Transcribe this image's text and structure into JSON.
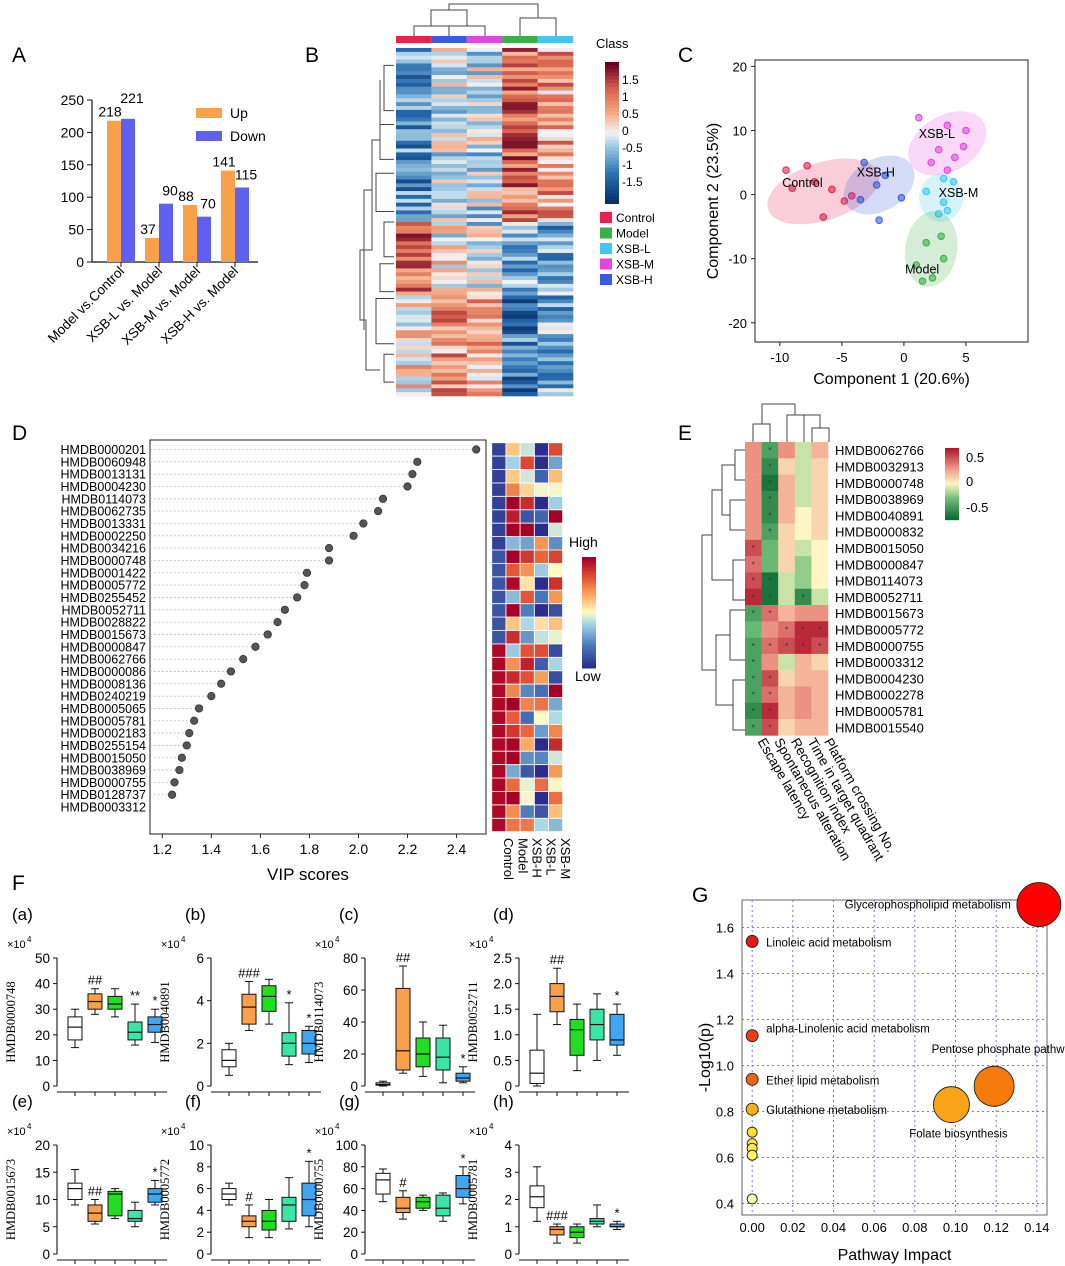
{
  "panel_labels": {
    "A": "A",
    "B": "B",
    "C": "C",
    "D": "D",
    "E": "E",
    "F": "F",
    "G": "G"
  },
  "colors": {
    "up": "#f9a04a",
    "down": "#6060f0",
    "control": "#e8224e",
    "model": "#3aae49",
    "xsb_l": "#41c7ef",
    "xsb_m": "#df47df",
    "xsb_h": "#3a5ae0"
  },
  "chart_data": [
    {
      "id": "A",
      "type": "bar",
      "categories": [
        "Model vs.Control",
        "XSB-L vs. Model",
        "XSB-M vs. Model",
        "XSB-H vs. Model"
      ],
      "series": [
        {
          "name": "Up",
          "values": [
            218,
            37,
            88,
            141
          ]
        },
        {
          "name": "Down",
          "values": [
            221,
            90,
            70,
            115
          ]
        }
      ],
      "ylim": [
        0,
        250
      ],
      "yticks": [
        0,
        50,
        100,
        150,
        200,
        250
      ],
      "legend": [
        "Up",
        "Down"
      ]
    },
    {
      "id": "B",
      "type": "heatmap",
      "legend_title": "Class",
      "scale_ticks": [
        "1.5",
        "1",
        "0.5",
        "0",
        "-0.5",
        "-1",
        "-1.5"
      ],
      "class_legend": [
        "Control",
        "Model",
        "XSB-L",
        "XSB-M",
        "XSB-H"
      ],
      "column_order": [
        "Control",
        "XSB-H",
        "XSB-M",
        "Model",
        "XSB-L"
      ]
    },
    {
      "id": "C",
      "type": "scatter",
      "xlabel": "Component 1 (20.6%)",
      "ylabel": "Component 2 (23.5%)",
      "xlim": [
        -12,
        10
      ],
      "ylim": [
        -23,
        21
      ],
      "xticks": [
        -10,
        -5,
        0,
        5
      ],
      "yticks": [
        -20,
        -10,
        0,
        10,
        20
      ],
      "groups": [
        {
          "name": "Control",
          "points": [
            [
              -9.5,
              3.8
            ],
            [
              -7.8,
              4.5
            ],
            [
              -7.2,
              2
            ],
            [
              -5.8,
              0.8
            ],
            [
              -4.2,
              -0.2
            ],
            [
              -4.8,
              -1
            ],
            [
              -6.5,
              -3.5
            ],
            [
              -9,
              1
            ]
          ]
        },
        {
          "name": "XSB-H",
          "points": [
            [
              -3.2,
              5
            ],
            [
              -1.5,
              3
            ],
            [
              -2.2,
              1.5
            ],
            [
              -3.5,
              -0.8
            ],
            [
              -0.2,
              -0.5
            ],
            [
              -2,
              -4
            ]
          ]
        },
        {
          "name": "XSB-L",
          "points": [
            [
              1.2,
              12
            ],
            [
              3.5,
              10.8
            ],
            [
              5,
              10
            ],
            [
              2.8,
              7
            ],
            [
              4.8,
              7.5
            ],
            [
              2.2,
              5
            ],
            [
              3.5,
              3.8
            ],
            [
              4.1,
              5.8
            ]
          ]
        },
        {
          "name": "XSB-M",
          "points": [
            [
              3.2,
              2.5
            ],
            [
              4,
              2
            ],
            [
              1.8,
              0.5
            ],
            [
              3.2,
              -1.2
            ],
            [
              3.5,
              -2.5
            ],
            [
              2.8,
              -3
            ]
          ]
        },
        {
          "name": "Model",
          "points": [
            [
              3,
              -6.5
            ],
            [
              1.8,
              -7.5
            ],
            [
              3.2,
              -10
            ],
            [
              1,
              -11
            ],
            [
              1.5,
              -13.5
            ],
            [
              2.3,
              -13
            ]
          ]
        }
      ]
    },
    {
      "id": "D",
      "type": "scatter",
      "xlabel": "VIP scores",
      "xlim": [
        1.15,
        2.52
      ],
      "xticks": [
        1.2,
        1.4,
        1.6,
        1.8,
        2.0,
        2.2,
        2.4
      ],
      "metabolites": [
        "HMDB0000201",
        "HMDB0060948",
        "HMDB0013131",
        "HMDB0004230",
        "HMDB0114073",
        "HMDB0062735",
        "HMDB0013331",
        "HMDB0002250",
        "HMDB0034216",
        "HMDB0000748",
        "HMDB0001422",
        "HMDB0005772",
        "HMDB0255452",
        "HMDB0052711",
        "HMDB0028822",
        "HMDB0015673",
        "HMDB0000847",
        "HMDB0062766",
        "HMDB0000086",
        "HMDB0008136",
        "HMDB0240219",
        "HMDB0005065",
        "HMDB0005781",
        "HMDB0002183",
        "HMDB0255154",
        "HMDB0015050",
        "HMDB0038969",
        "HMDB0000755",
        "HMDB0128737",
        "HMDB0003312"
      ],
      "vip": [
        2.48,
        2.24,
        2.22,
        2.2,
        2.1,
        2.08,
        2.02,
        1.98,
        1.88,
        1.88,
        1.79,
        1.78,
        1.75,
        1.7,
        1.67,
        1.63,
        1.58,
        1.53,
        1.48,
        1.44,
        1.4,
        1.35,
        1.33,
        1.31,
        1.3,
        1.28,
        1.27,
        1.25,
        1.24,
        1.2
      ],
      "heat_columns": [
        "Control",
        "Model",
        "XSB-H",
        "XSB-L",
        "XSB-M"
      ],
      "scale_high": "High",
      "scale_low": "Low"
    },
    {
      "id": "E",
      "type": "heatmap",
      "rows": [
        "HMDB0062766",
        "HMDB0032913",
        "HMDB0000748",
        "HMDB0038969",
        "HMDB0040891",
        "HMDB0000832",
        "HMDB0015050",
        "HMDB0000847",
        "HMDB0114073",
        "HMDB0052711",
        "HMDB0015673",
        "HMDB0005772",
        "HMDB0000755",
        "HMDB0003312",
        "HMDB0004230",
        "HMDB0002278",
        "HMDB0005781",
        "HMDB0015540"
      ],
      "columns": [
        "Escape latency",
        "Spontaneous alteration",
        "Recognition index",
        "Time in target quadrant",
        "Platform crossing No."
      ],
      "scale_ticks": [
        "0.5",
        "0",
        "-0.5"
      ],
      "values": [
        [
          0.3,
          -0.4,
          0.3,
          -0.1,
          0.2
        ],
        [
          0.3,
          -0.5,
          0.1,
          -0.1,
          0.1
        ],
        [
          0.3,
          -0.6,
          0.2,
          -0.1,
          0.1
        ],
        [
          0.3,
          -0.5,
          0.2,
          -0.1,
          0.1
        ],
        [
          0.3,
          -0.5,
          0.2,
          0.0,
          0.1
        ],
        [
          0.3,
          -0.4,
          0.1,
          0.0,
          0.1
        ],
        [
          0.5,
          -0.3,
          0.1,
          -0.1,
          0.0
        ],
        [
          0.4,
          -0.3,
          0.1,
          -0.2,
          0.0
        ],
        [
          0.5,
          -0.6,
          -0.1,
          -0.2,
          0.0
        ],
        [
          0.6,
          -0.6,
          -0.1,
          -0.5,
          -0.1
        ],
        [
          -0.4,
          0.4,
          0.2,
          0.3,
          0.3
        ],
        [
          -0.3,
          0.3,
          0.4,
          0.6,
          0.6
        ],
        [
          -0.4,
          0.4,
          0.5,
          0.6,
          0.5
        ],
        [
          -0.4,
          0.3,
          -0.1,
          0.2,
          0.1
        ],
        [
          -0.4,
          0.5,
          0.1,
          0.2,
          0.2
        ],
        [
          -0.4,
          0.4,
          0.2,
          0.3,
          0.2
        ],
        [
          -0.5,
          0.6,
          0.2,
          0.3,
          0.2
        ],
        [
          -0.4,
          0.5,
          0.1,
          0.2,
          0.2
        ]
      ]
    },
    {
      "id": "F",
      "type": "box",
      "groups": [
        "Control",
        "Model",
        "XSB-L",
        "XSB-M",
        "XSB-H"
      ],
      "group_colors": [
        "#ffffff",
        "#f9a04a",
        "#22dd22",
        "#3be5a6",
        "#3fa6f2"
      ],
      "subplots": [
        {
          "tag": "(a)",
          "ylabel": "HMDB0000748",
          "scale": "×10",
          "scale_exp": "4",
          "ylim": [
            0,
            50
          ],
          "yticks": [
            "0",
            "10",
            "20",
            "30",
            "40",
            "50"
          ],
          "boxes": [
            [
              15,
              18,
              23,
              27,
              30
            ],
            [
              28,
              30,
              33,
              36,
              38
            ],
            [
              27,
              30,
              32,
              35,
              38
            ],
            [
              16,
              18,
              21,
              25,
              32
            ],
            [
              17,
              21,
              24,
              27,
              30
            ]
          ],
          "marks": [
            "",
            "##",
            "",
            "**",
            "*"
          ]
        },
        {
          "tag": "(b)",
          "ylabel": "HMDB0040891",
          "scale": "×10",
          "scale_exp": "4",
          "ylim": [
            0,
            6
          ],
          "yticks": [
            "0",
            "2",
            "4",
            "6"
          ],
          "boxes": [
            [
              0.5,
              0.9,
              1.2,
              1.7,
              2.0
            ],
            [
              2.6,
              2.9,
              3.7,
              4.3,
              4.9
            ],
            [
              2.9,
              3.5,
              4.2,
              4.7,
              5.0
            ],
            [
              1.0,
              1.4,
              2.0,
              2.5,
              3.9
            ],
            [
              1.1,
              1.5,
              2.0,
              2.6,
              2.8
            ]
          ],
          "marks": [
            "",
            "###",
            "",
            "*",
            "*"
          ]
        },
        {
          "tag": "(c)",
          "ylabel": "HMDB0114073",
          "scale": "×10",
          "scale_exp": "4",
          "ylim": [
            0,
            80
          ],
          "yticks": [
            "0",
            "20",
            "40",
            "60",
            "80"
          ],
          "boxes": [
            [
              0,
              0.5,
              1,
              2,
              3
            ],
            [
              8,
              10,
              22,
              61,
              75
            ],
            [
              6,
              12,
              20,
              30,
              40
            ],
            [
              2,
              10,
              18,
              30,
              38
            ],
            [
              2,
              3,
              5,
              8,
              12
            ]
          ],
          "marks": [
            "",
            "##",
            "",
            "",
            "*"
          ]
        },
        {
          "tag": "(d)",
          "ylabel": "HMDB0052711",
          "scale": "×10",
          "scale_exp": "4",
          "ylim": [
            0,
            2.5
          ],
          "yticks": [
            "0",
            "0.5",
            "1.0",
            "1.5",
            "2.0",
            "2.5"
          ],
          "boxes": [
            [
              0,
              0.05,
              0.25,
              0.7,
              1.4
            ],
            [
              1.2,
              1.45,
              1.75,
              2.0,
              2.3
            ],
            [
              0.3,
              0.6,
              1.1,
              1.3,
              1.6
            ],
            [
              0.5,
              0.9,
              1.2,
              1.5,
              1.8
            ],
            [
              0.6,
              0.8,
              0.9,
              1.4,
              1.6
            ]
          ],
          "marks": [
            "",
            "##",
            "",
            "",
            "*"
          ]
        },
        {
          "tag": "(e)",
          "ylabel": "HMDB0015673",
          "scale": "×10",
          "scale_exp": "4",
          "ylim": [
            0,
            20
          ],
          "yticks": [
            "0",
            "5",
            "10",
            "15",
            "20"
          ],
          "boxes": [
            [
              9,
              10,
              12,
              13,
              15.5
            ],
            [
              5.5,
              6,
              7.5,
              9,
              10
            ],
            [
              6.5,
              7,
              11,
              11.5,
              12
            ],
            [
              5,
              6,
              6.5,
              8,
              9.5
            ],
            [
              9,
              9.5,
              11,
              12,
              13.5
            ]
          ],
          "marks": [
            "",
            "##",
            "",
            "",
            "*"
          ]
        },
        {
          "tag": "(f)",
          "ylabel": "HMDB0005772",
          "scale": "×10",
          "scale_exp": "4",
          "ylim": [
            0,
            10
          ],
          "yticks": [
            "0",
            "2",
            "4",
            "6",
            "8",
            "10"
          ],
          "boxes": [
            [
              4.5,
              5,
              5.5,
              6,
              6.5
            ],
            [
              1.5,
              2.5,
              3,
              3.5,
              4.5
            ],
            [
              1.5,
              2.2,
              3,
              4,
              5
            ],
            [
              2.3,
              3,
              4.5,
              5.2,
              7
            ],
            [
              2.5,
              3.5,
              5,
              6.5,
              8.5
            ]
          ],
          "marks": [
            "",
            "#",
            "",
            "",
            "*"
          ]
        },
        {
          "tag": "(g)",
          "ylabel": "HMDB0000755",
          "scale": "×10",
          "scale_exp": "4",
          "ylim": [
            0,
            100
          ],
          "yticks": [
            "0",
            "20",
            "40",
            "60",
            "80",
            "100"
          ],
          "boxes": [
            [
              48,
              55,
              68,
              74,
              78
            ],
            [
              32,
              38,
              42,
              52,
              58
            ],
            [
              40,
              42,
              48,
              52,
              54
            ],
            [
              30,
              35,
              42,
              54,
              56
            ],
            [
              46,
              52,
              60,
              72,
              80
            ]
          ],
          "marks": [
            "",
            "#",
            "",
            "",
            "*"
          ]
        },
        {
          "tag": "(h)",
          "ylabel": "HMDB0005781",
          "scale": "×10",
          "scale_exp": "4",
          "ylim": [
            0,
            4
          ],
          "yticks": [
            "0",
            "1",
            "2",
            "3",
            "4"
          ],
          "boxes": [
            [
              1.2,
              1.7,
              2.1,
              2.5,
              3.2
            ],
            [
              0.4,
              0.7,
              0.9,
              1.0,
              1.1
            ],
            [
              0.4,
              0.6,
              0.8,
              1.0,
              1.1
            ],
            [
              1.0,
              1.1,
              1.2,
              1.3,
              1.8
            ],
            [
              0.9,
              1.0,
              1.0,
              1.1,
              1.2
            ]
          ],
          "marks": [
            "",
            "###",
            "",
            "",
            "*"
          ]
        }
      ]
    },
    {
      "id": "G",
      "type": "scatter",
      "xlabel": "Pathway Impact",
      "ylabel": "-Log10(p)",
      "xlim": [
        -0.005,
        0.145
      ],
      "ylim": [
        0.35,
        1.72
      ],
      "xticks": [
        "0.00",
        "0.02",
        "0.04",
        "0.06",
        "0.08",
        "0.10",
        "0.12",
        "0.14"
      ],
      "yticks": [
        "0.4",
        "0.6",
        "0.8",
        "1.0",
        "1.2",
        "1.4",
        "1.6"
      ],
      "points": [
        {
          "x": 0.141,
          "y": 1.7,
          "r": 22,
          "color": "#ff0000",
          "label": "Glycerophospholipid metabolism"
        },
        {
          "x": 0.0,
          "y": 1.54,
          "r": 6,
          "color": "#e31818",
          "label": "Linoleic acid metabolism"
        },
        {
          "x": 0.0,
          "y": 1.13,
          "r": 6,
          "color": "#e84010",
          "label": "alpha-Linolenic acid metabolism"
        },
        {
          "x": 0.0,
          "y": 0.94,
          "r": 6,
          "color": "#f26510",
          "label": "Ether lipid metabolism"
        },
        {
          "x": 0.0,
          "y": 0.81,
          "r": 6,
          "color": "#f5b015",
          "label": "Glutathione metabolism"
        },
        {
          "x": 0.119,
          "y": 0.91,
          "r": 20,
          "color": "#f77a0c",
          "label": "Pentose phosphate pathway"
        },
        {
          "x": 0.098,
          "y": 0.83,
          "r": 18,
          "color": "#f9a318",
          "label": "Folate biosynthesis"
        },
        {
          "x": 0.0,
          "y": 0.71,
          "r": 5,
          "color": "#f8e030",
          "label": ""
        },
        {
          "x": 0.0,
          "y": 0.66,
          "r": 5,
          "color": "#faea3c",
          "label": ""
        },
        {
          "x": 0.0,
          "y": 0.64,
          "r": 5,
          "color": "#faef55",
          "label": ""
        },
        {
          "x": 0.0,
          "y": 0.61,
          "r": 5,
          "color": "#fbf26a",
          "label": ""
        },
        {
          "x": 0.0,
          "y": 0.42,
          "r": 5,
          "color": "#fbf9b8",
          "label": ""
        }
      ]
    }
  ]
}
